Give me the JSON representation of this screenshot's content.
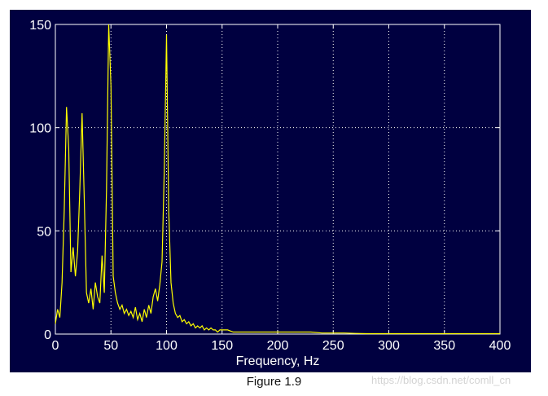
{
  "figure": {
    "caption": "Figure 1.9",
    "watermark": "https://blog.csdn.net/comll_cn"
  },
  "colors": {
    "background": "#000040",
    "axes": "#ffffff",
    "grid": "#ffffff",
    "line": "#ffff00"
  },
  "chart_data": {
    "type": "line",
    "title": "",
    "xlabel": "Frequency, Hz",
    "ylabel": "",
    "xlim": [
      0,
      400
    ],
    "ylim": [
      0,
      150
    ],
    "xticks": [
      0,
      50,
      100,
      150,
      200,
      250,
      300,
      350,
      400
    ],
    "yticks": [
      0,
      50,
      100,
      150
    ],
    "grid": true,
    "grid_style": "dotted",
    "series": [
      {
        "x": [
          0,
          2,
          4,
          6,
          8,
          10,
          12,
          14,
          16,
          18,
          20,
          22,
          24,
          26,
          28,
          30,
          32,
          34,
          36,
          38,
          40,
          42,
          44,
          46,
          48,
          50,
          52,
          54,
          56,
          58,
          60,
          62,
          64,
          66,
          68,
          70,
          72,
          74,
          76,
          78,
          80,
          82,
          84,
          86,
          88,
          90,
          92,
          94,
          96,
          98,
          100,
          102,
          104,
          106,
          108,
          110,
          112,
          114,
          116,
          118,
          120,
          122,
          124,
          126,
          128,
          130,
          132,
          134,
          136,
          138,
          140,
          142,
          144,
          146,
          148,
          150,
          155,
          160,
          165,
          170,
          175,
          180,
          185,
          190,
          195,
          200,
          210,
          220,
          230,
          240,
          250,
          260,
          270,
          280,
          300,
          320,
          340,
          360,
          380,
          400
        ],
        "y": [
          5,
          12,
          8,
          25,
          60,
          110,
          90,
          30,
          42,
          28,
          40,
          70,
          107,
          65,
          20,
          15,
          22,
          12,
          25,
          18,
          15,
          38,
          20,
          70,
          150,
          120,
          28,
          20,
          15,
          12,
          14,
          10,
          12,
          9,
          11,
          8,
          13,
          7,
          10,
          6,
          12,
          8,
          14,
          10,
          18,
          22,
          16,
          24,
          35,
          80,
          145,
          60,
          25,
          15,
          10,
          8,
          9,
          6,
          7,
          5,
          6,
          4,
          5,
          3,
          4,
          3,
          4,
          2,
          3,
          2,
          3,
          2,
          2,
          1,
          2,
          2,
          2,
          1,
          1,
          1,
          1,
          1,
          1,
          1,
          1,
          1,
          1,
          1,
          1,
          0.5,
          0.5,
          0.5,
          0.3,
          0.2,
          0.2,
          0.2,
          0.2,
          0.2,
          0.2,
          0.2
        ]
      }
    ]
  }
}
